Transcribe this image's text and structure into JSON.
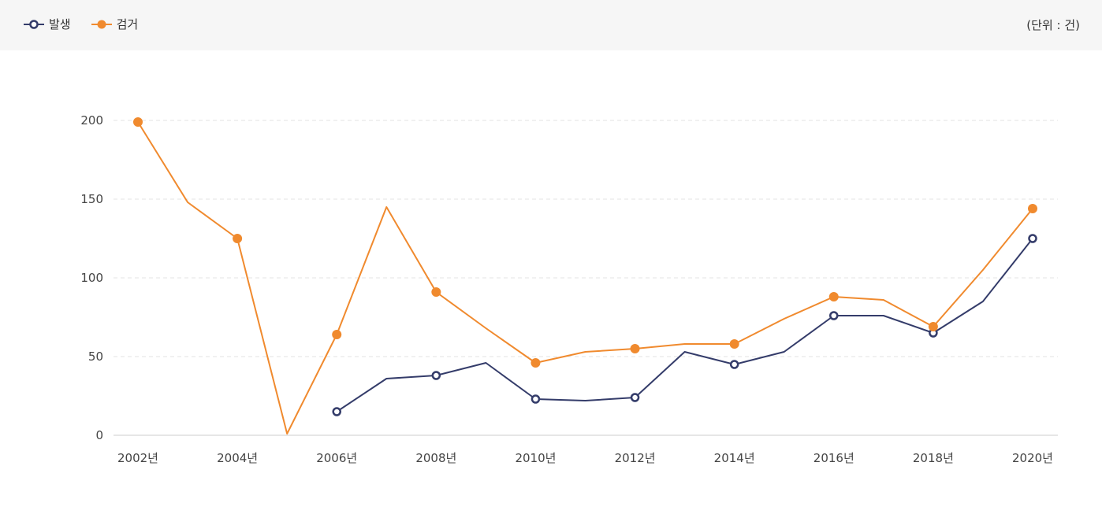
{
  "unit_label": "(단위 : 건)",
  "chart_data": {
    "type": "line",
    "x": [
      2002,
      2003,
      2004,
      2005,
      2006,
      2007,
      2008,
      2009,
      2010,
      2011,
      2012,
      2013,
      2014,
      2015,
      2016,
      2017,
      2018,
      2019,
      2020
    ],
    "xtick_labels": [
      "2002년",
      "2004년",
      "2006년",
      "2008년",
      "2010년",
      "2012년",
      "2014년",
      "2016년",
      "2018년",
      "2020년"
    ],
    "xtick_values": [
      2002,
      2004,
      2006,
      2008,
      2010,
      2012,
      2014,
      2016,
      2018,
      2020
    ],
    "yticks": [
      0,
      50,
      100,
      150,
      200
    ],
    "ylim": [
      0,
      200
    ],
    "grid": "horizontal-dashed",
    "legend_position": "top-left",
    "series": [
      {
        "name": "발생",
        "color": "#343c6a",
        "marker": "hollow-circle",
        "values": [
          null,
          null,
          null,
          null,
          15,
          36,
          38,
          46,
          23,
          22,
          24,
          53,
          45,
          53,
          76,
          76,
          65,
          85,
          125
        ],
        "marker_x": [
          2006,
          2008,
          2010,
          2012,
          2014,
          2016,
          2018,
          2020
        ]
      },
      {
        "name": "검거",
        "color": "#f08a2e",
        "marker": "filled-circle",
        "values": [
          199,
          148,
          125,
          1,
          64,
          145,
          91,
          68,
          46,
          53,
          55,
          58,
          58,
          74,
          88,
          86,
          69,
          105,
          144
        ],
        "marker_x": [
          2002,
          2004,
          2006,
          2008,
          2010,
          2012,
          2014,
          2016,
          2018,
          2020
        ]
      }
    ]
  }
}
